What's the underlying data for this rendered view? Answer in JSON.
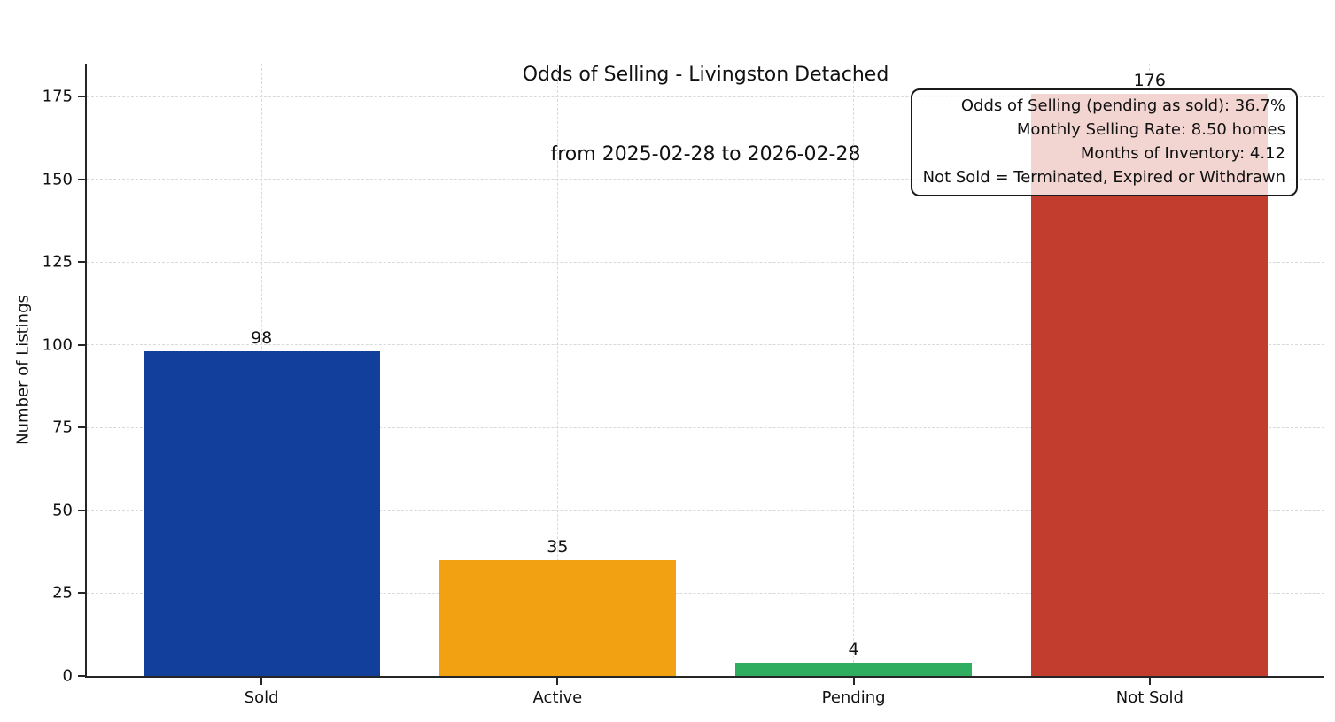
{
  "chart_data": {
    "type": "bar",
    "title": "Odds of Selling - Livingston Detached",
    "subtitle": "from 2025-02-28 to 2026-02-28",
    "categories": [
      "Sold",
      "Active",
      "Pending",
      "Not Sold"
    ],
    "values": [
      98,
      35,
      4,
      176
    ],
    "bar_colors": [
      "#123f9b",
      "#f2a113",
      "#2fae5f",
      "#c33d2e"
    ],
    "xlabel": "",
    "ylabel": "Number of Listings",
    "ylim": [
      0,
      185
    ],
    "yticks": [
      0,
      25,
      50,
      75,
      100,
      125,
      150,
      175
    ],
    "xlim": [
      -0.59,
      3.59
    ],
    "bar_width_units": 0.8,
    "grid": true,
    "grid_style": "dashed",
    "legend": "none",
    "annotation_lines": [
      "Odds of Selling (pending as sold): 36.7%",
      "Monthly Selling Rate: 8.50 homes",
      "Months of Inventory: 4.12",
      "Not Sold = Terminated, Expired or Withdrawn"
    ]
  }
}
